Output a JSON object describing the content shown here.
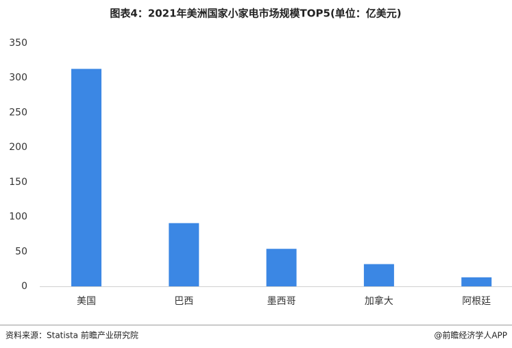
{
  "chart_data": {
    "type": "bar",
    "title": "图表4：2021年美洲国家小家电市场规模TOP5(单位：亿美元)",
    "categories": [
      "美国",
      "巴西",
      "墨西哥",
      "加拿大",
      "阿根廷"
    ],
    "values": [
      313,
      91,
      54,
      32,
      13
    ],
    "color": "#3b87e4",
    "ylim": [
      0,
      350
    ],
    "yticks": [
      0,
      50,
      100,
      150,
      200,
      250,
      300,
      350
    ],
    "grid": false,
    "source": "资料来源：Statista 前瞻产业研究院",
    "credit": "@前瞻经济学人APP"
  }
}
